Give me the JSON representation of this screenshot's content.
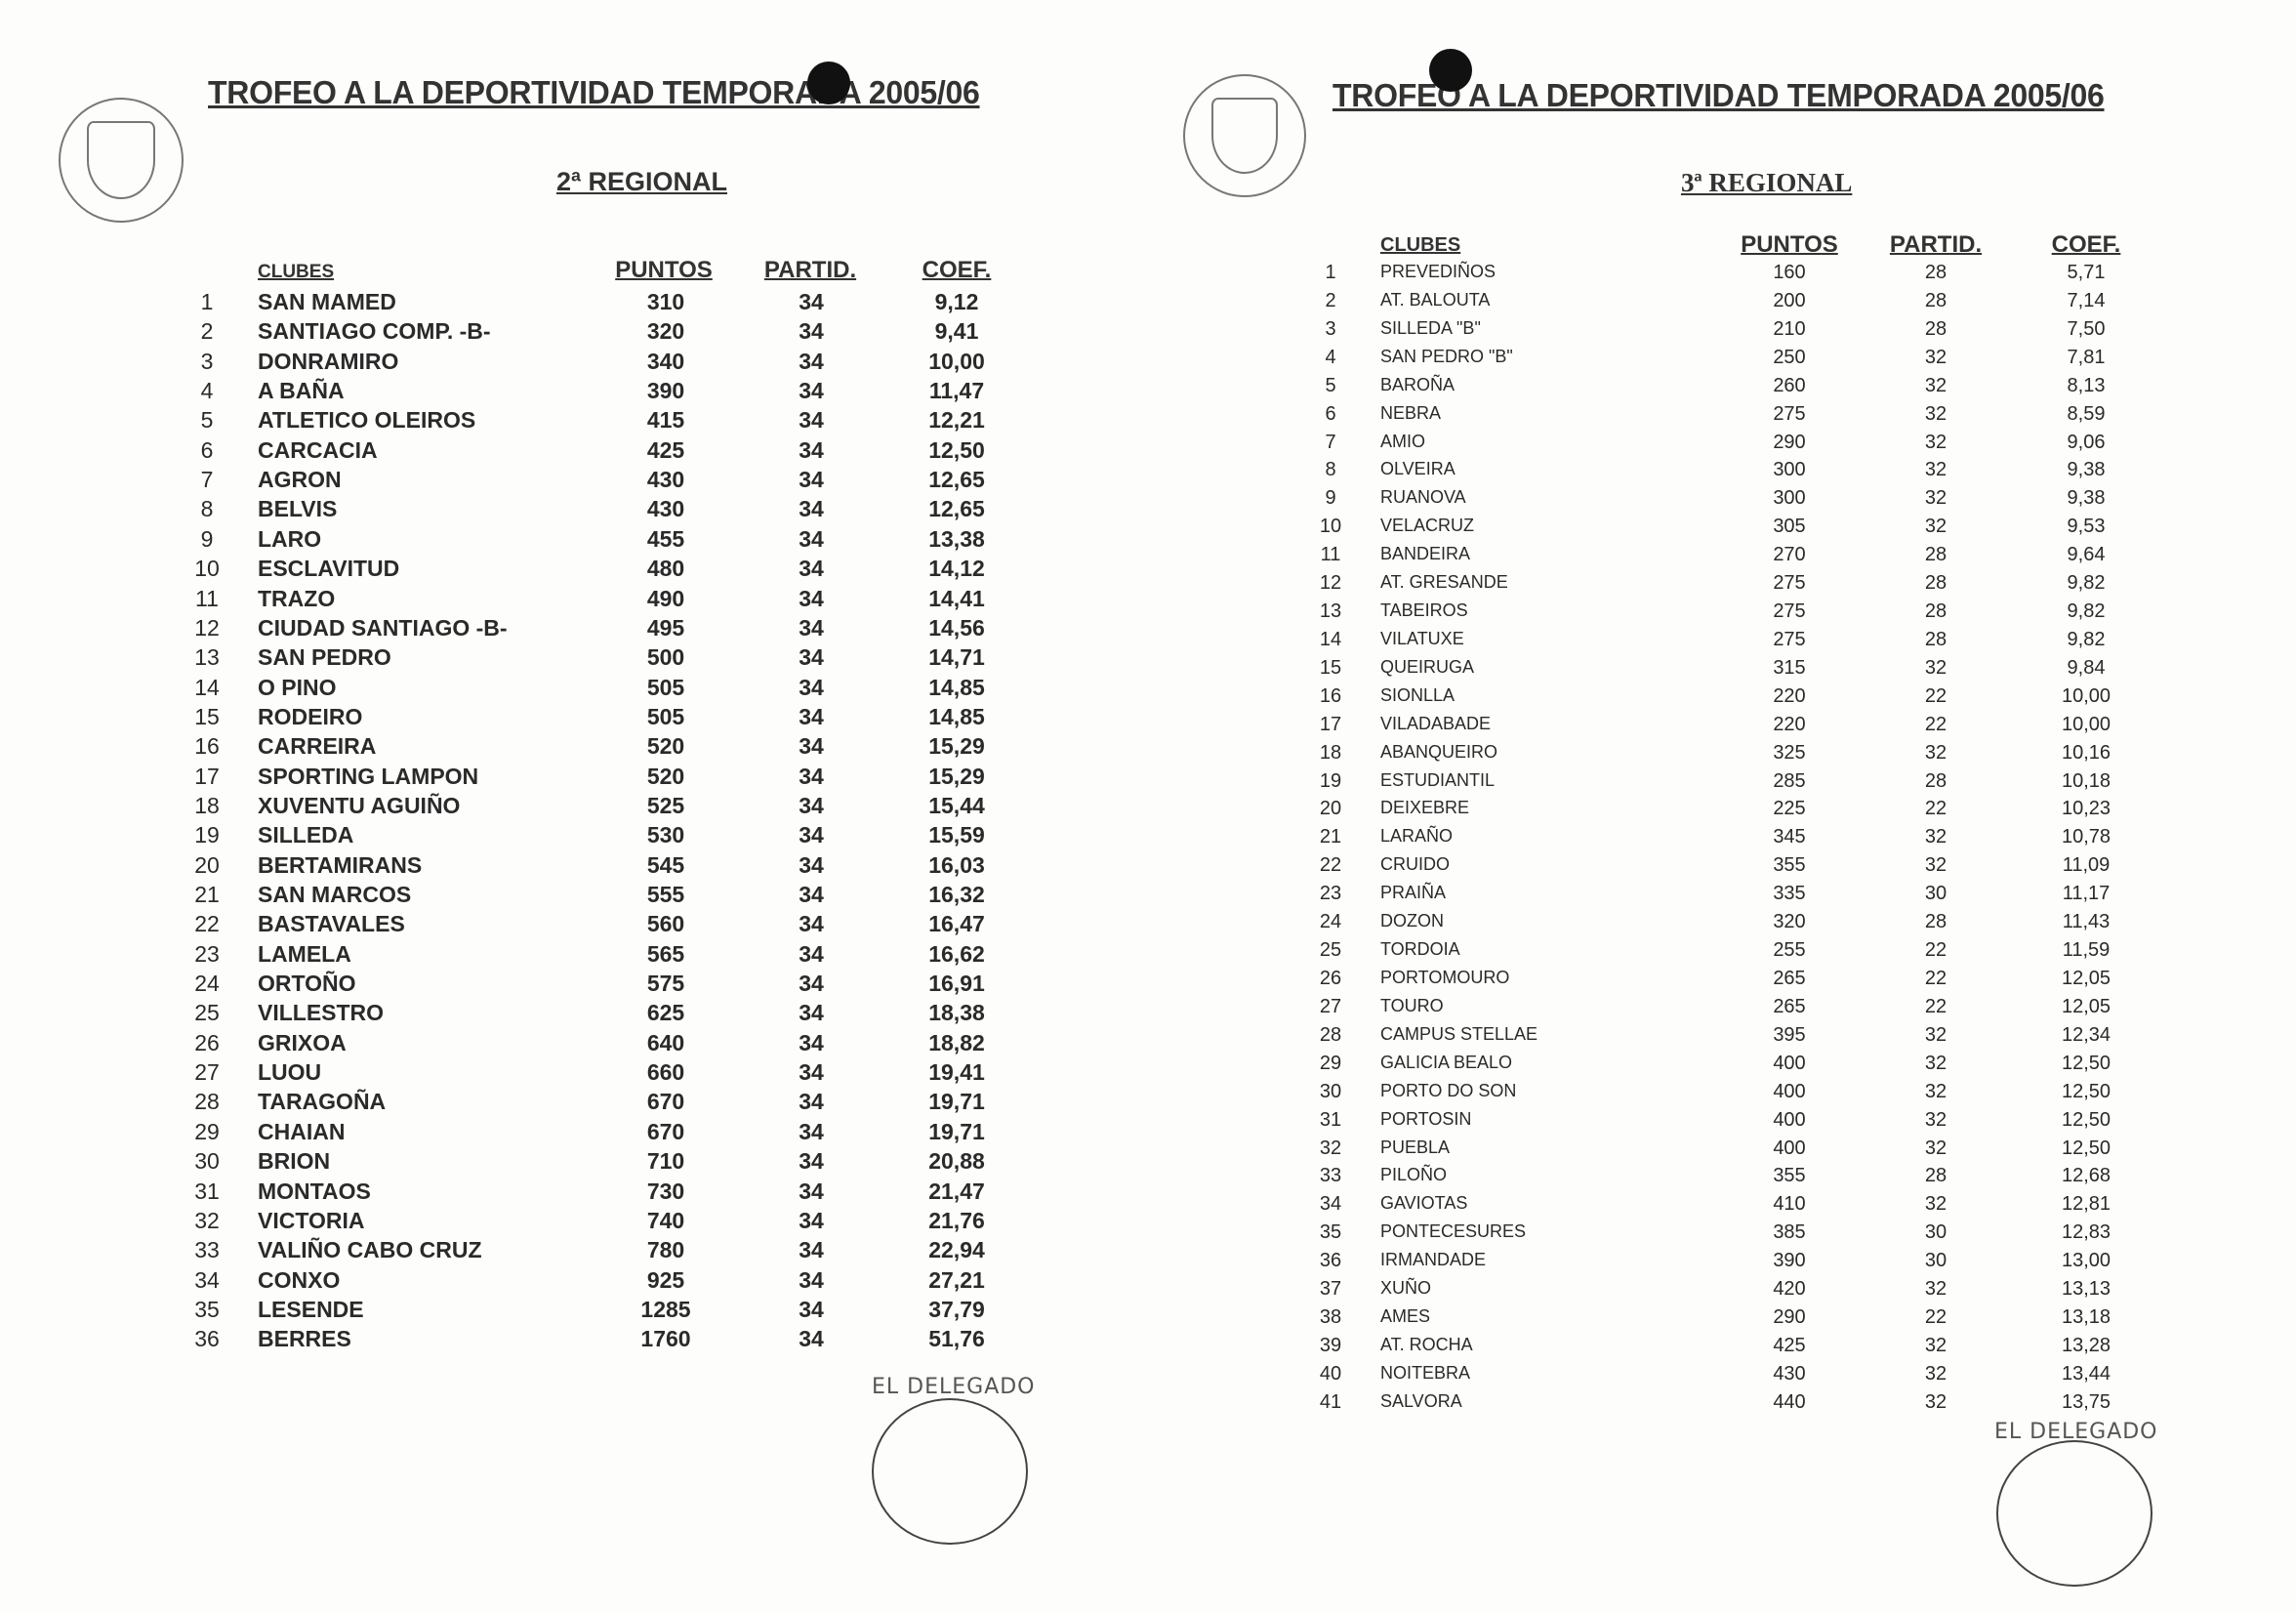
{
  "left_page": {
    "title": "TROFEO A LA DEPORTIVIDAD TEMPORADA 2005/06",
    "subtitle": "2ª REGIONAL",
    "headers": {
      "clubes": "CLUBES",
      "puntos": "PUNTOS",
      "partid": "PARTID.",
      "coef": "COEF."
    },
    "rows": [
      [
        "1",
        "SAN MAMED",
        "310",
        "34",
        "9,12"
      ],
      [
        "2",
        "SANTIAGO COMP. -B-",
        "320",
        "34",
        "9,41"
      ],
      [
        "3",
        "DONRAMIRO",
        "340",
        "34",
        "10,00"
      ],
      [
        "4",
        "A BAÑA",
        "390",
        "34",
        "11,47"
      ],
      [
        "5",
        "ATLETICO  OLEIROS",
        "415",
        "34",
        "12,21"
      ],
      [
        "6",
        "CARCACIA",
        "425",
        "34",
        "12,50"
      ],
      [
        "7",
        " AGRON",
        "430",
        "34",
        "12,65"
      ],
      [
        "8",
        "BELVIS",
        "430",
        "34",
        "12,65"
      ],
      [
        "9",
        "LARO",
        "455",
        "34",
        "13,38"
      ],
      [
        "10",
        "ESCLAVITUD",
        "480",
        "34",
        "14,12"
      ],
      [
        "11",
        "TRAZO",
        "490",
        "34",
        "14,41"
      ],
      [
        "12",
        "CIUDAD SANTIAGO -B-",
        "495",
        "34",
        "14,56"
      ],
      [
        "13",
        "SAN PEDRO",
        "500",
        "34",
        "14,71"
      ],
      [
        "14",
        "O  PINO",
        "505",
        "34",
        "14,85"
      ],
      [
        "15",
        "RODEIRO",
        "505",
        "34",
        "14,85"
      ],
      [
        "16",
        "CARREIRA",
        "520",
        "34",
        "15,29"
      ],
      [
        "17",
        "SPORTING  LAMPON",
        "520",
        "34",
        "15,29"
      ],
      [
        "18",
        "XUVENTU  AGUIÑO",
        "525",
        "34",
        "15,44"
      ],
      [
        "19",
        "SILLEDA",
        "530",
        "34",
        "15,59"
      ],
      [
        "20",
        "BERTAMIRANS",
        "545",
        "34",
        "16,03"
      ],
      [
        "21",
        "SAN MARCOS",
        "555",
        "34",
        "16,32"
      ],
      [
        "22",
        "BASTAVALES",
        "560",
        "34",
        "16,47"
      ],
      [
        "23",
        "LAMELA",
        "565",
        "34",
        "16,62"
      ],
      [
        "24",
        "ORTOÑO",
        "575",
        "34",
        "16,91"
      ],
      [
        "25",
        "VILLESTRO",
        "625",
        "34",
        "18,38"
      ],
      [
        "26",
        "GRIXOA",
        "640",
        "34",
        "18,82"
      ],
      [
        "27",
        "LUOU",
        "660",
        "34",
        "19,41"
      ],
      [
        "28",
        "TARAGOÑA",
        "670",
        "34",
        "19,71"
      ],
      [
        "29",
        "CHAIAN",
        "670",
        "34",
        "19,71"
      ],
      [
        "30",
        "BRION",
        "710",
        "34",
        "20,88"
      ],
      [
        "31",
        "MONTAOS",
        "730",
        "34",
        "21,47"
      ],
      [
        "32",
        "VICTORIA",
        "740",
        "34",
        "21,76"
      ],
      [
        "33",
        "VALIÑO CABO CRUZ",
        "780",
        "34",
        "22,94"
      ],
      [
        "34",
        "CONXO",
        "925",
        "34",
        "27,21"
      ],
      [
        "35",
        "LESENDE",
        "1285",
        "34",
        "37,79"
      ],
      [
        "36",
        "BERRES",
        "1760",
        "34",
        "51,76"
      ]
    ],
    "signature_label": "EL DELEGADO"
  },
  "right_page": {
    "title": "TROFEO A LA DEPORTIVIDAD TEMPORADA 2005/06",
    "subtitle": "3ª REGIONAL",
    "headers": {
      "clubes": "CLUBES",
      "puntos": "PUNTOS",
      "partid": "PARTID.",
      "coef": "COEF."
    },
    "rows": [
      [
        "1",
        "PREVEDIÑOS",
        "160",
        "28",
        "5,71"
      ],
      [
        "2",
        "AT. BALOUTA",
        "200",
        "28",
        "7,14"
      ],
      [
        "3",
        "SILLEDA \"B\"",
        "210",
        "28",
        "7,50"
      ],
      [
        "4",
        "SAN PEDRO \"B\"",
        "250",
        "32",
        "7,81"
      ],
      [
        "5",
        "BAROÑA",
        "260",
        "32",
        "8,13"
      ],
      [
        "6",
        "NEBRA",
        "275",
        "32",
        "8,59"
      ],
      [
        "7",
        "AMIO",
        "290",
        "32",
        "9,06"
      ],
      [
        "8",
        "OLVEIRA",
        "300",
        "32",
        "9,38"
      ],
      [
        "9",
        "RUANOVA",
        "300",
        "32",
        "9,38"
      ],
      [
        "10",
        "VELACRUZ",
        "305",
        "32",
        "9,53"
      ],
      [
        "11",
        "BANDEIRA",
        "270",
        "28",
        "9,64"
      ],
      [
        "12",
        "AT. GRESANDE",
        "275",
        "28",
        "9,82"
      ],
      [
        "13",
        "TABEIROS",
        "275",
        "28",
        "9,82"
      ],
      [
        "14",
        "VILATUXE",
        "275",
        "28",
        "9,82"
      ],
      [
        "15",
        "QUEIRUGA",
        "315",
        "32",
        "9,84"
      ],
      [
        "16",
        "SIONLLA",
        "220",
        "22",
        "10,00"
      ],
      [
        "17",
        "VILADABADE",
        "220",
        "22",
        "10,00"
      ],
      [
        "18",
        " ABANQUEIRO",
        "325",
        "32",
        "10,16"
      ],
      [
        "19",
        "ESTUDIANTIL",
        "285",
        "28",
        "10,18"
      ],
      [
        "20",
        "DEIXEBRE",
        "225",
        "22",
        "10,23"
      ],
      [
        "21",
        "LARAÑO",
        "345",
        "32",
        "10,78"
      ],
      [
        "22",
        "CRUIDO",
        "355",
        "32",
        "11,09"
      ],
      [
        "23",
        "PRAIÑA",
        "335",
        "30",
        "11,17"
      ],
      [
        "24",
        "DOZON",
        "320",
        "28",
        "11,43"
      ],
      [
        "25",
        "TORDOIA",
        "255",
        "22",
        "11,59"
      ],
      [
        "26",
        "PORTOMOURO",
        "265",
        "22",
        "12,05"
      ],
      [
        "27",
        "TOURO",
        "265",
        "22",
        "12,05"
      ],
      [
        "28",
        "CAMPUS STELLAE",
        "395",
        "32",
        "12,34"
      ],
      [
        "29",
        "GALICIA BEALO",
        "400",
        "32",
        "12,50"
      ],
      [
        "30",
        "PORTO DO SON",
        "400",
        "32",
        "12,50"
      ],
      [
        "31",
        "PORTOSIN",
        "400",
        "32",
        "12,50"
      ],
      [
        "32",
        "PUEBLA",
        "400",
        "32",
        "12,50"
      ],
      [
        "33",
        "PILOÑO",
        "355",
        "28",
        "12,68"
      ],
      [
        "34",
        "GAVIOTAS",
        "410",
        "32",
        "12,81"
      ],
      [
        "35",
        "PONTECESURES",
        "385",
        "30",
        "12,83"
      ],
      [
        "36",
        "IRMANDADE",
        "390",
        "30",
        "13,00"
      ],
      [
        "37",
        "XUÑO",
        "420",
        "32",
        "13,13"
      ],
      [
        "38",
        "AMES",
        "290",
        "22",
        "13,18"
      ],
      [
        "39",
        "AT. ROCHA",
        "425",
        "32",
        "13,28"
      ],
      [
        "40",
        "NOITEBRA",
        "430",
        "32",
        "13,44"
      ],
      [
        "41",
        "SALVORA",
        "440",
        "32",
        "13,75"
      ]
    ],
    "signature_label": "EL DELEGADO"
  },
  "logo_icon": "federation-seal-icon",
  "ink_color": "#2a2a2a"
}
